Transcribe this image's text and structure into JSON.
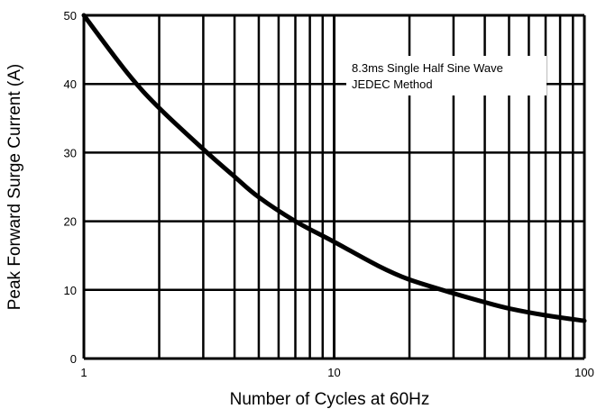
{
  "chart_data": {
    "type": "line",
    "title": "",
    "xlabel": "Number of Cycles at 60Hz",
    "ylabel": "Peak Forward Surge Current (A)",
    "x_scale": "log",
    "xlim": [
      1,
      100
    ],
    "ylim": [
      0,
      50
    ],
    "x_ticks": [
      "1",
      "10",
      "100"
    ],
    "y_ticks": [
      "0",
      "10",
      "20",
      "30",
      "40",
      "50"
    ],
    "grid": true,
    "annotation": [
      "8.3ms Single Half Sine Wave",
      "JEDEC Method"
    ],
    "series": [
      {
        "x": [
          1,
          1.5,
          2,
          3,
          4,
          5,
          7,
          10,
          15,
          20,
          30,
          40,
          50,
          70,
          100
        ],
        "y": [
          50,
          41.5,
          36.5,
          30.5,
          26.5,
          23.5,
          20,
          17,
          13.5,
          11.5,
          9.5,
          8.2,
          7.3,
          6.3,
          5.5
        ]
      }
    ],
    "colors": {
      "line": "#000000",
      "grid": "#000000",
      "background": "#ffffff"
    }
  }
}
